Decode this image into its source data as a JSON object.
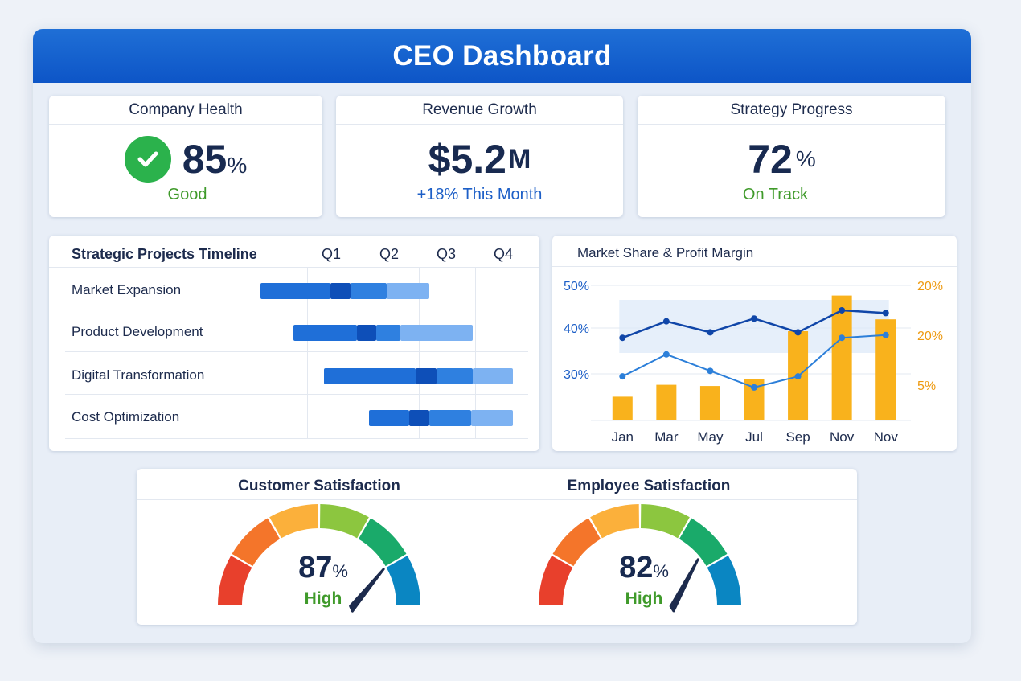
{
  "title": "CEO Dashboard",
  "kpis": {
    "health": {
      "title": "Company Health",
      "value": "85",
      "unit": "%",
      "status": "Good",
      "icon": "check-circle-icon"
    },
    "revenue": {
      "title": "Revenue Growth",
      "value": "$5.2",
      "unit": "M",
      "sub": "+18% This Month"
    },
    "strategy": {
      "title": "Strategy Progress",
      "value": "72",
      "unit": "%",
      "status": "On Track"
    }
  },
  "timeline": {
    "title": "Strategic Projects Timeline",
    "quarters": [
      "Q1",
      "Q2",
      "Q3",
      "Q4"
    ],
    "projects": [
      {
        "name": "Market Expansion"
      },
      {
        "name": "Product Development"
      },
      {
        "name": "Digital Transformation"
      },
      {
        "name": "Cost Optimization"
      }
    ]
  },
  "market": {
    "title": "Market Share & Profit Margin",
    "left_ticks": [
      "50%",
      "40%",
      "30%"
    ],
    "right_ticks": [
      "20%",
      "20%",
      "5%"
    ],
    "months": [
      "Jan",
      "Mar",
      "May",
      "Jul",
      "Sep",
      "Nov",
      "Nov"
    ]
  },
  "chart_data": {
    "type": "bar",
    "title": "Market Share & Profit Margin",
    "categories": [
      "Jan",
      "Mar",
      "May",
      "Jul",
      "Sep",
      "Nov",
      "Nov"
    ],
    "series": [
      {
        "values": [
          4,
          6,
          5.8,
          7,
          15,
          21,
          17
        ]
      },
      {
        "values": [
          40,
          43,
          41,
          43.5,
          41,
          45,
          44.5
        ]
      },
      {
        "values": [
          33,
          37,
          34,
          31,
          33,
          40,
          40.5
        ]
      }
    ],
    "ylim": [
      25,
      52
    ],
    "y2lim": [
      0,
      25
    ]
  },
  "gauges": [
    {
      "title": "Customer Satisfaction",
      "value": "87",
      "unit": "%",
      "status": "High",
      "fraction": 0.87
    },
    {
      "title": "Employee Satisfaction",
      "value": "82",
      "unit": "%",
      "status": "High",
      "fraction": 0.82
    }
  ],
  "colors": {
    "header": "#0d55c7",
    "good": "#3f9a2a",
    "accent_blue": "#1d5fc7",
    "bar_orange": "#f9b21c",
    "bar_dark": "#0e4fb8",
    "bar_mid": "#1f6fd8",
    "bar_light": "#7db2f2"
  }
}
